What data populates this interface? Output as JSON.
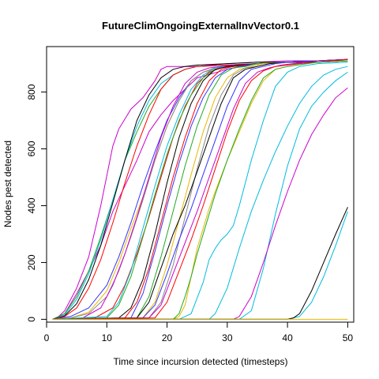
{
  "chart_data": {
    "type": "line",
    "title": "FutureClimOngoingExternalInvVector0.1",
    "xlabel": "Time since incursion detected (timesteps)",
    "ylabel": "Nodes pest detected",
    "xlim": [
      0,
      51
    ],
    "ylim": [
      -10,
      960
    ],
    "xticks": [
      0,
      10,
      20,
      30,
      40,
      50
    ],
    "yticks": [
      0,
      200,
      400,
      600,
      800
    ],
    "grid": false,
    "legend": "none",
    "series": [
      {
        "color": "#cc00cc",
        "x": [
          1,
          2,
          3,
          5,
          7,
          9,
          11,
          12,
          14,
          16,
          18,
          19,
          20,
          25,
          30,
          35,
          40,
          45,
          50
        ],
        "y": [
          0,
          10,
          30,
          110,
          220,
          400,
          610,
          670,
          740,
          780,
          840,
          880,
          890,
          890,
          900,
          905,
          910,
          910,
          915
        ]
      },
      {
        "color": "#cc00cc",
        "x": [
          1,
          3,
          5,
          7,
          9,
          11,
          13,
          15,
          17,
          19,
          21,
          23,
          25,
          30,
          35,
          40,
          45,
          50
        ],
        "y": [
          0,
          20,
          90,
          170,
          260,
          380,
          470,
          560,
          660,
          720,
          770,
          810,
          850,
          880,
          900,
          905,
          910,
          910
        ]
      },
      {
        "color": "#22aa22",
        "x": [
          1,
          3,
          5,
          7,
          9,
          11,
          13,
          15,
          17,
          19,
          21,
          23,
          25,
          30,
          35,
          40,
          45,
          50
        ],
        "y": [
          0,
          20,
          80,
          170,
          290,
          420,
          560,
          660,
          750,
          810,
          860,
          880,
          890,
          895,
          900,
          905,
          905,
          910
        ]
      },
      {
        "color": "#00bbdd",
        "x": [
          1,
          3,
          5,
          7,
          9,
          11,
          13,
          15,
          17,
          19,
          21,
          23,
          25,
          30,
          35,
          40,
          45,
          50
        ],
        "y": [
          0,
          15,
          70,
          160,
          280,
          420,
          560,
          680,
          770,
          830,
          860,
          880,
          890,
          895,
          900,
          905,
          905,
          910
        ]
      },
      {
        "color": "#000000",
        "x": [
          1,
          3,
          5,
          7,
          9,
          11,
          13,
          15,
          17,
          19,
          21,
          23,
          25,
          30,
          35,
          40,
          45,
          50
        ],
        "y": [
          0,
          12,
          55,
          140,
          260,
          410,
          560,
          700,
          790,
          850,
          880,
          890,
          895,
          900,
          905,
          905,
          910,
          910
        ]
      },
      {
        "color": "#ff0000",
        "x": [
          1,
          3,
          5,
          7,
          9,
          11,
          13,
          15,
          17,
          19,
          21,
          23,
          25,
          30,
          35,
          40,
          45,
          50
        ],
        "y": [
          0,
          10,
          40,
          110,
          210,
          340,
          480,
          610,
          720,
          810,
          860,
          880,
          890,
          895,
          900,
          905,
          905,
          910
        ]
      },
      {
        "color": "#3333ff",
        "x": [
          1,
          4,
          7,
          10,
          12,
          14,
          16,
          18,
          20,
          22,
          24,
          26,
          28,
          30,
          35,
          40,
          45,
          50
        ],
        "y": [
          0,
          10,
          40,
          120,
          220,
          340,
          470,
          590,
          700,
          780,
          840,
          870,
          885,
          890,
          900,
          905,
          910,
          915
        ]
      },
      {
        "color": "#e6b800",
        "x": [
          1,
          4,
          7,
          10,
          12,
          14,
          16,
          18,
          20,
          22,
          24,
          26,
          28,
          30,
          35,
          40,
          45,
          50
        ],
        "y": [
          0,
          5,
          25,
          100,
          200,
          320,
          430,
          560,
          680,
          770,
          840,
          870,
          880,
          890,
          900,
          905,
          905,
          910
        ]
      },
      {
        "color": "#888888",
        "x": [
          1,
          4,
          7,
          10,
          12,
          14,
          16,
          18,
          20,
          22,
          24,
          26,
          28,
          30,
          35,
          40,
          45,
          50
        ],
        "y": [
          0,
          5,
          20,
          80,
          170,
          290,
          420,
          560,
          680,
          770,
          840,
          870,
          885,
          890,
          900,
          905,
          910,
          910
        ]
      },
      {
        "color": "#cc00cc",
        "x": [
          1,
          6,
          9,
          11,
          13,
          15,
          17,
          19,
          21,
          23,
          25,
          27,
          29,
          31,
          35,
          40,
          45,
          50
        ],
        "y": [
          0,
          5,
          40,
          120,
          230,
          360,
          500,
          640,
          750,
          830,
          870,
          885,
          890,
          895,
          900,
          905,
          910,
          910
        ]
      },
      {
        "color": "#ff0000",
        "x": [
          1,
          8,
          11,
          13,
          15,
          17,
          19,
          21,
          23,
          25,
          27,
          29,
          31,
          33,
          35,
          40,
          45,
          50
        ],
        "y": [
          0,
          5,
          40,
          120,
          230,
          360,
          500,
          640,
          750,
          830,
          870,
          885,
          890,
          895,
          900,
          905,
          905,
          910
        ]
      },
      {
        "color": "#22aa22",
        "x": [
          1,
          10,
          12,
          14,
          16,
          18,
          20,
          22,
          24,
          26,
          28,
          30,
          32,
          35,
          40,
          45,
          50
        ],
        "y": [
          0,
          5,
          50,
          150,
          290,
          440,
          580,
          700,
          790,
          850,
          880,
          890,
          895,
          900,
          905,
          905,
          910
        ]
      },
      {
        "color": "#00bbdd",
        "x": [
          1,
          10,
          12,
          14,
          16,
          18,
          20,
          22,
          24,
          26,
          28,
          30,
          32,
          35,
          40,
          45,
          50
        ],
        "y": [
          0,
          10,
          60,
          170,
          320,
          470,
          610,
          720,
          810,
          860,
          885,
          890,
          895,
          900,
          905,
          910,
          910
        ]
      },
      {
        "color": "#000000",
        "x": [
          1,
          12,
          14,
          16,
          18,
          20,
          22,
          24,
          26,
          28,
          30,
          32,
          35,
          40,
          45,
          50
        ],
        "y": [
          0,
          5,
          40,
          140,
          300,
          480,
          640,
          760,
          840,
          880,
          890,
          895,
          900,
          905,
          905,
          910
        ]
      },
      {
        "color": "#ff0000",
        "x": [
          1,
          13,
          15,
          17,
          19,
          21,
          23,
          25,
          27,
          29,
          31,
          33,
          35,
          40,
          45,
          50
        ],
        "y": [
          0,
          5,
          60,
          180,
          340,
          500,
          640,
          760,
          840,
          880,
          890,
          895,
          900,
          905,
          910,
          910
        ]
      },
      {
        "color": "#3333ff",
        "x": [
          1,
          14,
          16,
          18,
          20,
          22,
          24,
          26,
          28,
          30,
          32,
          35,
          40,
          45,
          50
        ],
        "y": [
          0,
          5,
          90,
          240,
          400,
          550,
          680,
          780,
          850,
          880,
          890,
          900,
          905,
          910,
          910
        ]
      },
      {
        "color": "#22aa22",
        "x": [
          1,
          15,
          17,
          19,
          21,
          23,
          25,
          27,
          29,
          31,
          33,
          35,
          40,
          45,
          50
        ],
        "y": [
          0,
          5,
          80,
          220,
          380,
          540,
          680,
          790,
          860,
          885,
          890,
          900,
          905,
          910,
          915
        ]
      },
      {
        "color": "#e6b800",
        "x": [
          1,
          16,
          18,
          20,
          22,
          24,
          26,
          28,
          30,
          32,
          34,
          36,
          40,
          45,
          50
        ],
        "y": [
          0,
          5,
          60,
          190,
          350,
          510,
          660,
          780,
          850,
          880,
          890,
          900,
          905,
          910,
          910
        ]
      },
      {
        "color": "#888888",
        "x": [
          1,
          17,
          19,
          21,
          23,
          25,
          27,
          29,
          31,
          33,
          35,
          37,
          40,
          45,
          50
        ],
        "y": [
          0,
          5,
          60,
          190,
          360,
          530,
          680,
          790,
          860,
          885,
          890,
          900,
          905,
          910,
          910
        ]
      },
      {
        "color": "#000000",
        "x": [
          1,
          15,
          17,
          19,
          21,
          23,
          25,
          27,
          29,
          31,
          33,
          35,
          37,
          40,
          45,
          50
        ],
        "y": [
          0,
          5,
          60,
          180,
          300,
          400,
          520,
          640,
          760,
          850,
          880,
          890,
          900,
          905,
          910,
          915
        ]
      },
      {
        "color": "#3333ff",
        "x": [
          1,
          16,
          18,
          20,
          22,
          24,
          26,
          28,
          30,
          32,
          34,
          36,
          38,
          40,
          45,
          50
        ],
        "y": [
          0,
          5,
          50,
          160,
          280,
          390,
          510,
          630,
          750,
          840,
          880,
          890,
          900,
          905,
          910,
          915
        ]
      },
      {
        "color": "#cc00cc",
        "x": [
          1,
          17,
          19,
          21,
          23,
          25,
          27,
          29,
          31,
          33,
          35,
          37,
          39,
          41,
          45,
          50
        ],
        "y": [
          0,
          5,
          50,
          160,
          270,
          380,
          500,
          620,
          740,
          830,
          870,
          885,
          895,
          900,
          910,
          915
        ]
      },
      {
        "color": "#ff0000",
        "x": [
          1,
          18,
          20,
          22,
          24,
          26,
          28,
          30,
          32,
          34,
          36,
          38,
          40,
          42,
          45,
          50
        ],
        "y": [
          0,
          5,
          60,
          170,
          280,
          400,
          530,
          660,
          770,
          840,
          875,
          890,
          895,
          900,
          905,
          915
        ]
      },
      {
        "color": "#e6b800",
        "x": [
          1,
          21,
          22,
          23,
          24,
          25,
          26,
          27,
          28,
          30,
          32,
          34,
          36,
          38,
          40,
          45,
          50
        ],
        "y": [
          0,
          0,
          10,
          50,
          150,
          250,
          320,
          390,
          450,
          560,
          660,
          760,
          840,
          880,
          890,
          905,
          910
        ]
      },
      {
        "color": "#22aa22",
        "x": [
          1,
          21,
          22,
          23,
          24,
          25,
          26,
          27,
          28,
          30,
          32,
          34,
          36,
          38,
          40,
          45,
          50
        ],
        "y": [
          0,
          0,
          20,
          80,
          150,
          230,
          300,
          370,
          440,
          560,
          670,
          770,
          850,
          880,
          890,
          905,
          910
        ]
      },
      {
        "color": "#00bbdd",
        "x": [
          1,
          22,
          24,
          26,
          27,
          28,
          29,
          30,
          31,
          32,
          34,
          36,
          38,
          40,
          42,
          45,
          50
        ],
        "y": [
          0,
          0,
          20,
          130,
          210,
          250,
          280,
          300,
          330,
          400,
          560,
          700,
          820,
          870,
          890,
          900,
          905
        ]
      },
      {
        "color": "#00bbdd",
        "x": [
          1,
          27,
          28,
          30,
          32,
          34,
          36,
          38,
          40,
          42,
          44,
          46,
          48,
          50
        ],
        "y": [
          0,
          0,
          20,
          110,
          250,
          380,
          490,
          590,
          680,
          760,
          820,
          860,
          880,
          890
        ]
      },
      {
        "color": "#00bbdd",
        "x": [
          1,
          32,
          34,
          36,
          38,
          40,
          42,
          44,
          46,
          48,
          50
        ],
        "y": [
          0,
          0,
          30,
          180,
          370,
          540,
          670,
          750,
          800,
          840,
          870
        ]
      },
      {
        "color": "#cc00cc",
        "x": [
          1,
          31,
          32,
          34,
          36,
          38,
          40,
          42,
          44,
          46,
          48,
          50
        ],
        "y": [
          0,
          0,
          10,
          80,
          200,
          330,
          450,
          560,
          650,
          720,
          780,
          815
        ]
      },
      {
        "color": "#00bbdd",
        "x": [
          1,
          40,
          42,
          44,
          46,
          48,
          50
        ],
        "y": [
          0,
          0,
          10,
          60,
          150,
          260,
          380
        ]
      },
      {
        "color": "#000000",
        "x": [
          1,
          40,
          41,
          42,
          44,
          46,
          48,
          50
        ],
        "y": [
          0,
          0,
          5,
          20,
          100,
          200,
          300,
          395
        ]
      },
      {
        "color": "#e6b800",
        "x": [
          1,
          50
        ],
        "y": [
          0,
          0
        ]
      }
    ]
  }
}
